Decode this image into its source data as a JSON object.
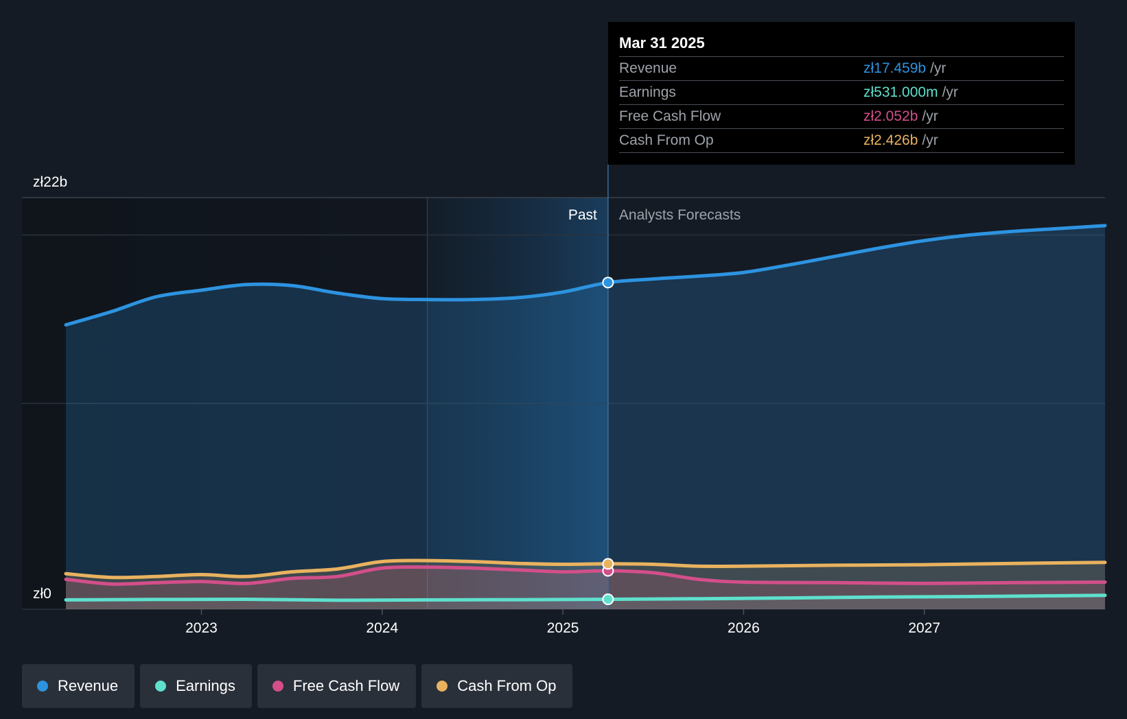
{
  "chart_data": {
    "type": "area",
    "y_axis": {
      "top_label": "zł22b",
      "bottom_label": "zł0",
      "ylim": [
        0,
        22
      ]
    },
    "x_ticks": [
      "2023",
      "2024",
      "2025",
      "2026",
      "2027"
    ],
    "divider": {
      "past_label": "Past",
      "forecast_label": "Analysts Forecasts",
      "date": 2025.25
    },
    "series": [
      {
        "name": "Revenue",
        "color": "#2d93e0",
        "x": [
          2022.25,
          2022.5,
          2022.75,
          2023.0,
          2023.25,
          2023.5,
          2023.75,
          2024.0,
          2024.25,
          2024.5,
          2024.75,
          2025.0,
          2025.25,
          2025.5,
          2025.75,
          2026.0,
          2026.25,
          2026.5,
          2026.75,
          2027.0,
          2027.25,
          2027.5,
          2027.75,
          2028.0
        ],
        "y": [
          15.2,
          15.9,
          16.7,
          17.05,
          17.35,
          17.3,
          16.9,
          16.6,
          16.55,
          16.55,
          16.65,
          16.95,
          17.46,
          17.65,
          17.8,
          18.0,
          18.4,
          18.85,
          19.3,
          19.7,
          20.0,
          20.2,
          20.35,
          20.5
        ]
      },
      {
        "name": "Earnings",
        "color": "#5ee0cd",
        "x": [
          2022.25,
          2022.75,
          2023.25,
          2023.75,
          2024.25,
          2024.75,
          2025.25,
          2025.75,
          2026.25,
          2026.75,
          2027.25,
          2027.75,
          2028.0
        ],
        "y": [
          0.5,
          0.52,
          0.53,
          0.48,
          0.5,
          0.51,
          0.531,
          0.56,
          0.6,
          0.65,
          0.68,
          0.72,
          0.74
        ]
      },
      {
        "name": "Free Cash Flow",
        "color": "#d24f8a",
        "x": [
          2022.25,
          2022.5,
          2022.75,
          2023.0,
          2023.25,
          2023.5,
          2023.75,
          2024.0,
          2024.25,
          2024.5,
          2024.75,
          2025.0,
          2025.25,
          2025.5,
          2025.75,
          2026.0,
          2026.5,
          2027.0,
          2027.5,
          2028.0
        ],
        "y": [
          1.6,
          1.35,
          1.42,
          1.48,
          1.38,
          1.65,
          1.75,
          2.2,
          2.25,
          2.2,
          2.1,
          2.0,
          2.052,
          1.95,
          1.6,
          1.45,
          1.42,
          1.38,
          1.42,
          1.45
        ]
      },
      {
        "name": "Cash From Op",
        "color": "#e9b25f",
        "x": [
          2022.25,
          2022.5,
          2022.75,
          2023.0,
          2023.25,
          2023.5,
          2023.75,
          2024.0,
          2024.25,
          2024.5,
          2024.75,
          2025.0,
          2025.25,
          2025.5,
          2025.75,
          2026.0,
          2026.5,
          2027.0,
          2027.5,
          2028.0
        ],
        "y": [
          1.9,
          1.7,
          1.75,
          1.85,
          1.75,
          2.0,
          2.15,
          2.55,
          2.6,
          2.55,
          2.45,
          2.4,
          2.426,
          2.4,
          2.3,
          2.3,
          2.35,
          2.38,
          2.45,
          2.5
        ]
      }
    ]
  },
  "tooltip": {
    "date": "Mar 31 2025",
    "rows": [
      {
        "label": "Revenue",
        "value": "zł17.459b",
        "unit": "/yr",
        "color": "#2d93e0"
      },
      {
        "label": "Earnings",
        "value": "zł531.000m",
        "unit": "/yr",
        "color": "#5ee0cd"
      },
      {
        "label": "Free Cash Flow",
        "value": "zł2.052b",
        "unit": "/yr",
        "color": "#d24f8a"
      },
      {
        "label": "Cash From Op",
        "value": "zł2.426b",
        "unit": "/yr",
        "color": "#e9b25f"
      }
    ]
  },
  "legend": [
    {
      "label": "Revenue",
      "color": "#2d93e0"
    },
    {
      "label": "Earnings",
      "color": "#5ee0cd"
    },
    {
      "label": "Free Cash Flow",
      "color": "#d24f8a"
    },
    {
      "label": "Cash From Op",
      "color": "#e9b25f"
    }
  ]
}
